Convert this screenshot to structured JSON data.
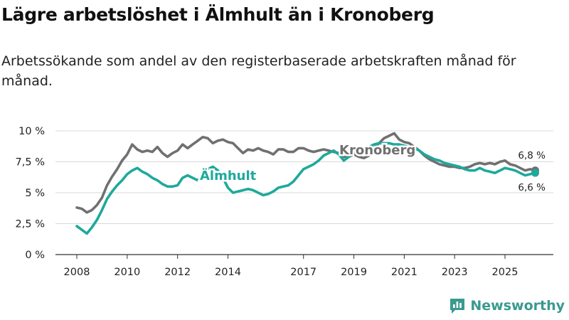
{
  "title": "Lägre arbetslöshet i Älmhult än i Kronoberg",
  "subtitle": "Arbetssökande som andel av den registerbaserade arbetskraften månad för månad.",
  "brand": {
    "name": "Newsworthy",
    "icon": "newsworthy-logo-icon",
    "color": "#3a9a8e"
  },
  "chart_data": {
    "type": "line",
    "title": "Lägre arbetslöshet i Älmhult än i Kronoberg",
    "xlabel": "",
    "ylabel": "",
    "x_range": [
      2008,
      2026.3
    ],
    "ylim": [
      0,
      10
    ],
    "y_ticks": [
      {
        "value": 0,
        "label": "0 %"
      },
      {
        "value": 2.5,
        "label": "2,5 %"
      },
      {
        "value": 5,
        "label": "5 %"
      },
      {
        "value": 7.5,
        "label": "7,5 %"
      },
      {
        "value": 10,
        "label": "10 %"
      }
    ],
    "x_ticks": [
      {
        "value": 2008,
        "label": "2008"
      },
      {
        "value": 2010,
        "label": "2010"
      },
      {
        "value": 2012,
        "label": "2012"
      },
      {
        "value": 2014,
        "label": "2014"
      },
      {
        "value": 2017,
        "label": "2017"
      },
      {
        "value": 2019,
        "label": "2019"
      },
      {
        "value": 2021,
        "label": "2021"
      },
      {
        "value": 2023,
        "label": "2023"
      },
      {
        "value": 2025,
        "label": "2025"
      }
    ],
    "grid": true,
    "series": [
      {
        "name": "Kronoberg",
        "color": "#707070",
        "end_label": "6,8 %",
        "points": [
          [
            2008.0,
            3.8
          ],
          [
            2008.2,
            3.7
          ],
          [
            2008.4,
            3.4
          ],
          [
            2008.6,
            3.6
          ],
          [
            2008.8,
            4.0
          ],
          [
            2009.0,
            4.6
          ],
          [
            2009.2,
            5.6
          ],
          [
            2009.4,
            6.3
          ],
          [
            2009.6,
            6.9
          ],
          [
            2009.8,
            7.6
          ],
          [
            2010.0,
            8.1
          ],
          [
            2010.2,
            8.9
          ],
          [
            2010.4,
            8.5
          ],
          [
            2010.6,
            8.3
          ],
          [
            2010.8,
            8.4
          ],
          [
            2011.0,
            8.3
          ],
          [
            2011.2,
            8.7
          ],
          [
            2011.4,
            8.2
          ],
          [
            2011.6,
            7.9
          ],
          [
            2011.8,
            8.2
          ],
          [
            2012.0,
            8.4
          ],
          [
            2012.2,
            8.9
          ],
          [
            2012.4,
            8.6
          ],
          [
            2012.6,
            8.9
          ],
          [
            2012.8,
            9.2
          ],
          [
            2013.0,
            9.5
          ],
          [
            2013.2,
            9.4
          ],
          [
            2013.4,
            9.0
          ],
          [
            2013.6,
            9.2
          ],
          [
            2013.8,
            9.3
          ],
          [
            2014.0,
            9.1
          ],
          [
            2014.2,
            9.0
          ],
          [
            2014.4,
            8.6
          ],
          [
            2014.6,
            8.2
          ],
          [
            2014.8,
            8.5
          ],
          [
            2015.0,
            8.4
          ],
          [
            2015.2,
            8.6
          ],
          [
            2015.4,
            8.4
          ],
          [
            2015.6,
            8.3
          ],
          [
            2015.8,
            8.1
          ],
          [
            2016.0,
            8.5
          ],
          [
            2016.2,
            8.5
          ],
          [
            2016.4,
            8.3
          ],
          [
            2016.6,
            8.3
          ],
          [
            2016.8,
            8.6
          ],
          [
            2017.0,
            8.6
          ],
          [
            2017.2,
            8.4
          ],
          [
            2017.4,
            8.3
          ],
          [
            2017.6,
            8.4
          ],
          [
            2017.8,
            8.5
          ],
          [
            2018.0,
            8.4
          ],
          [
            2018.2,
            8.3
          ],
          [
            2018.4,
            8.2
          ],
          [
            2018.6,
            7.9
          ],
          [
            2018.8,
            7.9
          ],
          [
            2019.0,
            8.1
          ],
          [
            2019.2,
            7.9
          ],
          [
            2019.4,
            7.8
          ],
          [
            2019.6,
            8.0
          ],
          [
            2019.8,
            8.6
          ],
          [
            2020.0,
            9.0
          ],
          [
            2020.2,
            9.4
          ],
          [
            2020.4,
            9.6
          ],
          [
            2020.6,
            9.8
          ],
          [
            2020.8,
            9.3
          ],
          [
            2021.0,
            9.1
          ],
          [
            2021.2,
            9.0
          ],
          [
            2021.4,
            8.7
          ],
          [
            2021.6,
            8.4
          ],
          [
            2021.8,
            8.0
          ],
          [
            2022.0,
            7.7
          ],
          [
            2022.2,
            7.5
          ],
          [
            2022.4,
            7.3
          ],
          [
            2022.6,
            7.2
          ],
          [
            2022.8,
            7.1
          ],
          [
            2023.0,
            7.1
          ],
          [
            2023.2,
            7.0
          ],
          [
            2023.4,
            7.0
          ],
          [
            2023.6,
            7.1
          ],
          [
            2023.8,
            7.3
          ],
          [
            2024.0,
            7.4
          ],
          [
            2024.2,
            7.3
          ],
          [
            2024.4,
            7.4
          ],
          [
            2024.6,
            7.3
          ],
          [
            2024.8,
            7.5
          ],
          [
            2025.0,
            7.6
          ],
          [
            2025.2,
            7.3
          ],
          [
            2025.4,
            7.2
          ],
          [
            2025.6,
            7.0
          ],
          [
            2025.8,
            6.8
          ],
          [
            2026.0,
            6.9
          ],
          [
            2026.2,
            6.8
          ]
        ]
      },
      {
        "name": "Älmhult",
        "color": "#1ea99c",
        "end_label": "6,6 %",
        "points": [
          [
            2008.0,
            2.3
          ],
          [
            2008.2,
            2.0
          ],
          [
            2008.4,
            1.7
          ],
          [
            2008.6,
            2.2
          ],
          [
            2008.8,
            2.8
          ],
          [
            2009.0,
            3.6
          ],
          [
            2009.2,
            4.5
          ],
          [
            2009.4,
            5.1
          ],
          [
            2009.6,
            5.6
          ],
          [
            2009.8,
            6.0
          ],
          [
            2010.0,
            6.5
          ],
          [
            2010.2,
            6.8
          ],
          [
            2010.4,
            7.0
          ],
          [
            2010.6,
            6.7
          ],
          [
            2010.8,
            6.5
          ],
          [
            2011.0,
            6.2
          ],
          [
            2011.2,
            6.0
          ],
          [
            2011.4,
            5.7
          ],
          [
            2011.6,
            5.5
          ],
          [
            2011.8,
            5.5
          ],
          [
            2012.0,
            5.6
          ],
          [
            2012.2,
            6.2
          ],
          [
            2012.4,
            6.4
          ],
          [
            2012.6,
            6.2
          ],
          [
            2012.8,
            6.0
          ],
          [
            2013.0,
            6.3
          ],
          [
            2013.2,
            6.9
          ],
          [
            2013.4,
            7.1
          ],
          [
            2013.6,
            6.8
          ],
          [
            2013.8,
            6.2
          ],
          [
            2014.0,
            5.4
          ],
          [
            2014.2,
            5.0
          ],
          [
            2014.4,
            5.1
          ],
          [
            2014.6,
            5.2
          ],
          [
            2014.8,
            5.3
          ],
          [
            2015.0,
            5.2
          ],
          [
            2015.2,
            5.0
          ],
          [
            2015.4,
            4.8
          ],
          [
            2015.6,
            4.9
          ],
          [
            2015.8,
            5.1
          ],
          [
            2016.0,
            5.4
          ],
          [
            2016.2,
            5.5
          ],
          [
            2016.4,
            5.6
          ],
          [
            2016.6,
            5.9
          ],
          [
            2016.8,
            6.4
          ],
          [
            2017.0,
            6.9
          ],
          [
            2017.2,
            7.1
          ],
          [
            2017.4,
            7.3
          ],
          [
            2017.6,
            7.6
          ],
          [
            2017.8,
            8.0
          ],
          [
            2018.0,
            8.2
          ],
          [
            2018.2,
            8.4
          ],
          [
            2018.4,
            8.1
          ],
          [
            2018.6,
            7.6
          ],
          [
            2018.8,
            7.9
          ],
          [
            2019.0,
            8.3
          ],
          [
            2019.2,
            8.4
          ],
          [
            2019.4,
            8.5
          ],
          [
            2019.6,
            8.7
          ],
          [
            2019.8,
            8.9
          ],
          [
            2020.0,
            9.0
          ],
          [
            2020.2,
            9.0
          ],
          [
            2020.4,
            9.0
          ],
          [
            2020.6,
            8.9
          ],
          [
            2020.8,
            8.9
          ],
          [
            2021.0,
            8.8
          ],
          [
            2021.2,
            8.7
          ],
          [
            2021.4,
            8.6
          ],
          [
            2021.6,
            8.4
          ],
          [
            2021.8,
            8.1
          ],
          [
            2022.0,
            7.9
          ],
          [
            2022.2,
            7.7
          ],
          [
            2022.4,
            7.6
          ],
          [
            2022.6,
            7.4
          ],
          [
            2022.8,
            7.3
          ],
          [
            2023.0,
            7.2
          ],
          [
            2023.2,
            7.1
          ],
          [
            2023.4,
            6.9
          ],
          [
            2023.6,
            6.8
          ],
          [
            2023.8,
            6.8
          ],
          [
            2024.0,
            7.0
          ],
          [
            2024.2,
            6.8
          ],
          [
            2024.4,
            6.7
          ],
          [
            2024.6,
            6.6
          ],
          [
            2024.8,
            6.8
          ],
          [
            2025.0,
            7.0
          ],
          [
            2025.2,
            6.9
          ],
          [
            2025.4,
            6.8
          ],
          [
            2025.6,
            6.6
          ],
          [
            2025.8,
            6.4
          ],
          [
            2026.0,
            6.5
          ],
          [
            2026.2,
            6.6
          ]
        ]
      }
    ]
  }
}
